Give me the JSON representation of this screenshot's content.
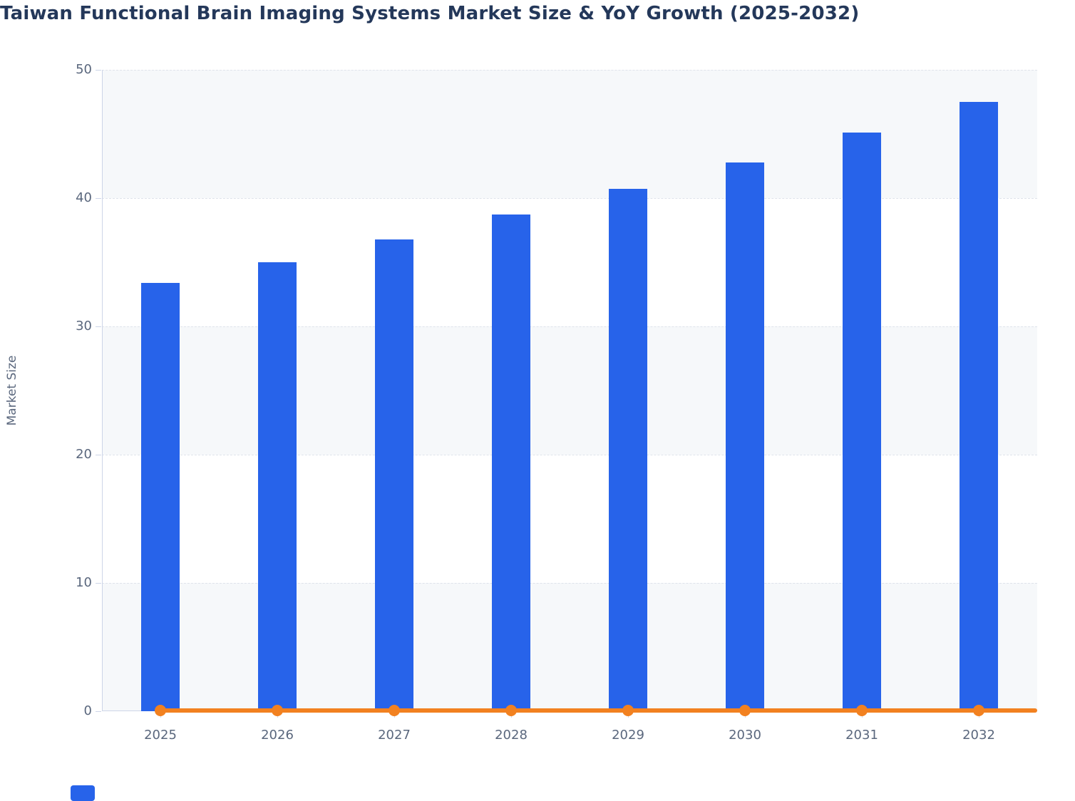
{
  "title": "Taiwan Functional Brain Imaging Systems Market Size & YoY Growth (2025-2032)",
  "colors": {
    "bar": "#2763EA",
    "line": "#F28120",
    "title_text": "#24385A",
    "axis_text": "#5A677D",
    "band_fill": "#F6F8FA",
    "gridline": "#DFE3EB",
    "axis_line": "#CDD5E8",
    "background": "#FFFFFF"
  },
  "y_axis": {
    "title": "Market Size",
    "tick_labels": [
      "0",
      "10",
      "20",
      "30",
      "40",
      "50"
    ]
  },
  "x_axis": {
    "tick_labels": [
      "2025",
      "2026",
      "2027",
      "2028",
      "2029",
      "2030",
      "2031",
      "2032"
    ]
  },
  "legend": {
    "clipped_swatch_visible": true,
    "swatch_color": "#2763EA"
  },
  "chart_data": {
    "type": "bar",
    "combo": "bar + line",
    "title": "Taiwan Functional Brain Imaging Systems Market Size & YoY Growth (2025-2032)",
    "categories": [
      "2025",
      "2026",
      "2027",
      "2028",
      "2029",
      "2030",
      "2031",
      "2032"
    ],
    "series": [
      {
        "name": "Market Size",
        "type": "bar",
        "color": "#2763EA",
        "values": [
          33.4,
          35.0,
          36.8,
          38.7,
          40.7,
          42.8,
          45.1,
          47.5
        ]
      },
      {
        "name": "YoY Growth",
        "type": "line",
        "color": "#F28120",
        "values": [
          0.05,
          0.05,
          0.05,
          0.05,
          0.05,
          0.05,
          0.05,
          0.05
        ],
        "note": "flat line with circular markers rendered at ~0 on the shared 0-50 axis"
      }
    ],
    "xlabel": "",
    "ylabel": "Market Size",
    "ylim": [
      0,
      50
    ],
    "yticks": [
      0,
      10,
      20,
      30,
      40,
      50
    ],
    "grid": "horizontal dashed gridlines every 10",
    "split_bands": "alternating horizontal bands (0-10, 20-30, 40-50 shaded)",
    "legend_position": "bottom-left (clipped at image edge)"
  }
}
